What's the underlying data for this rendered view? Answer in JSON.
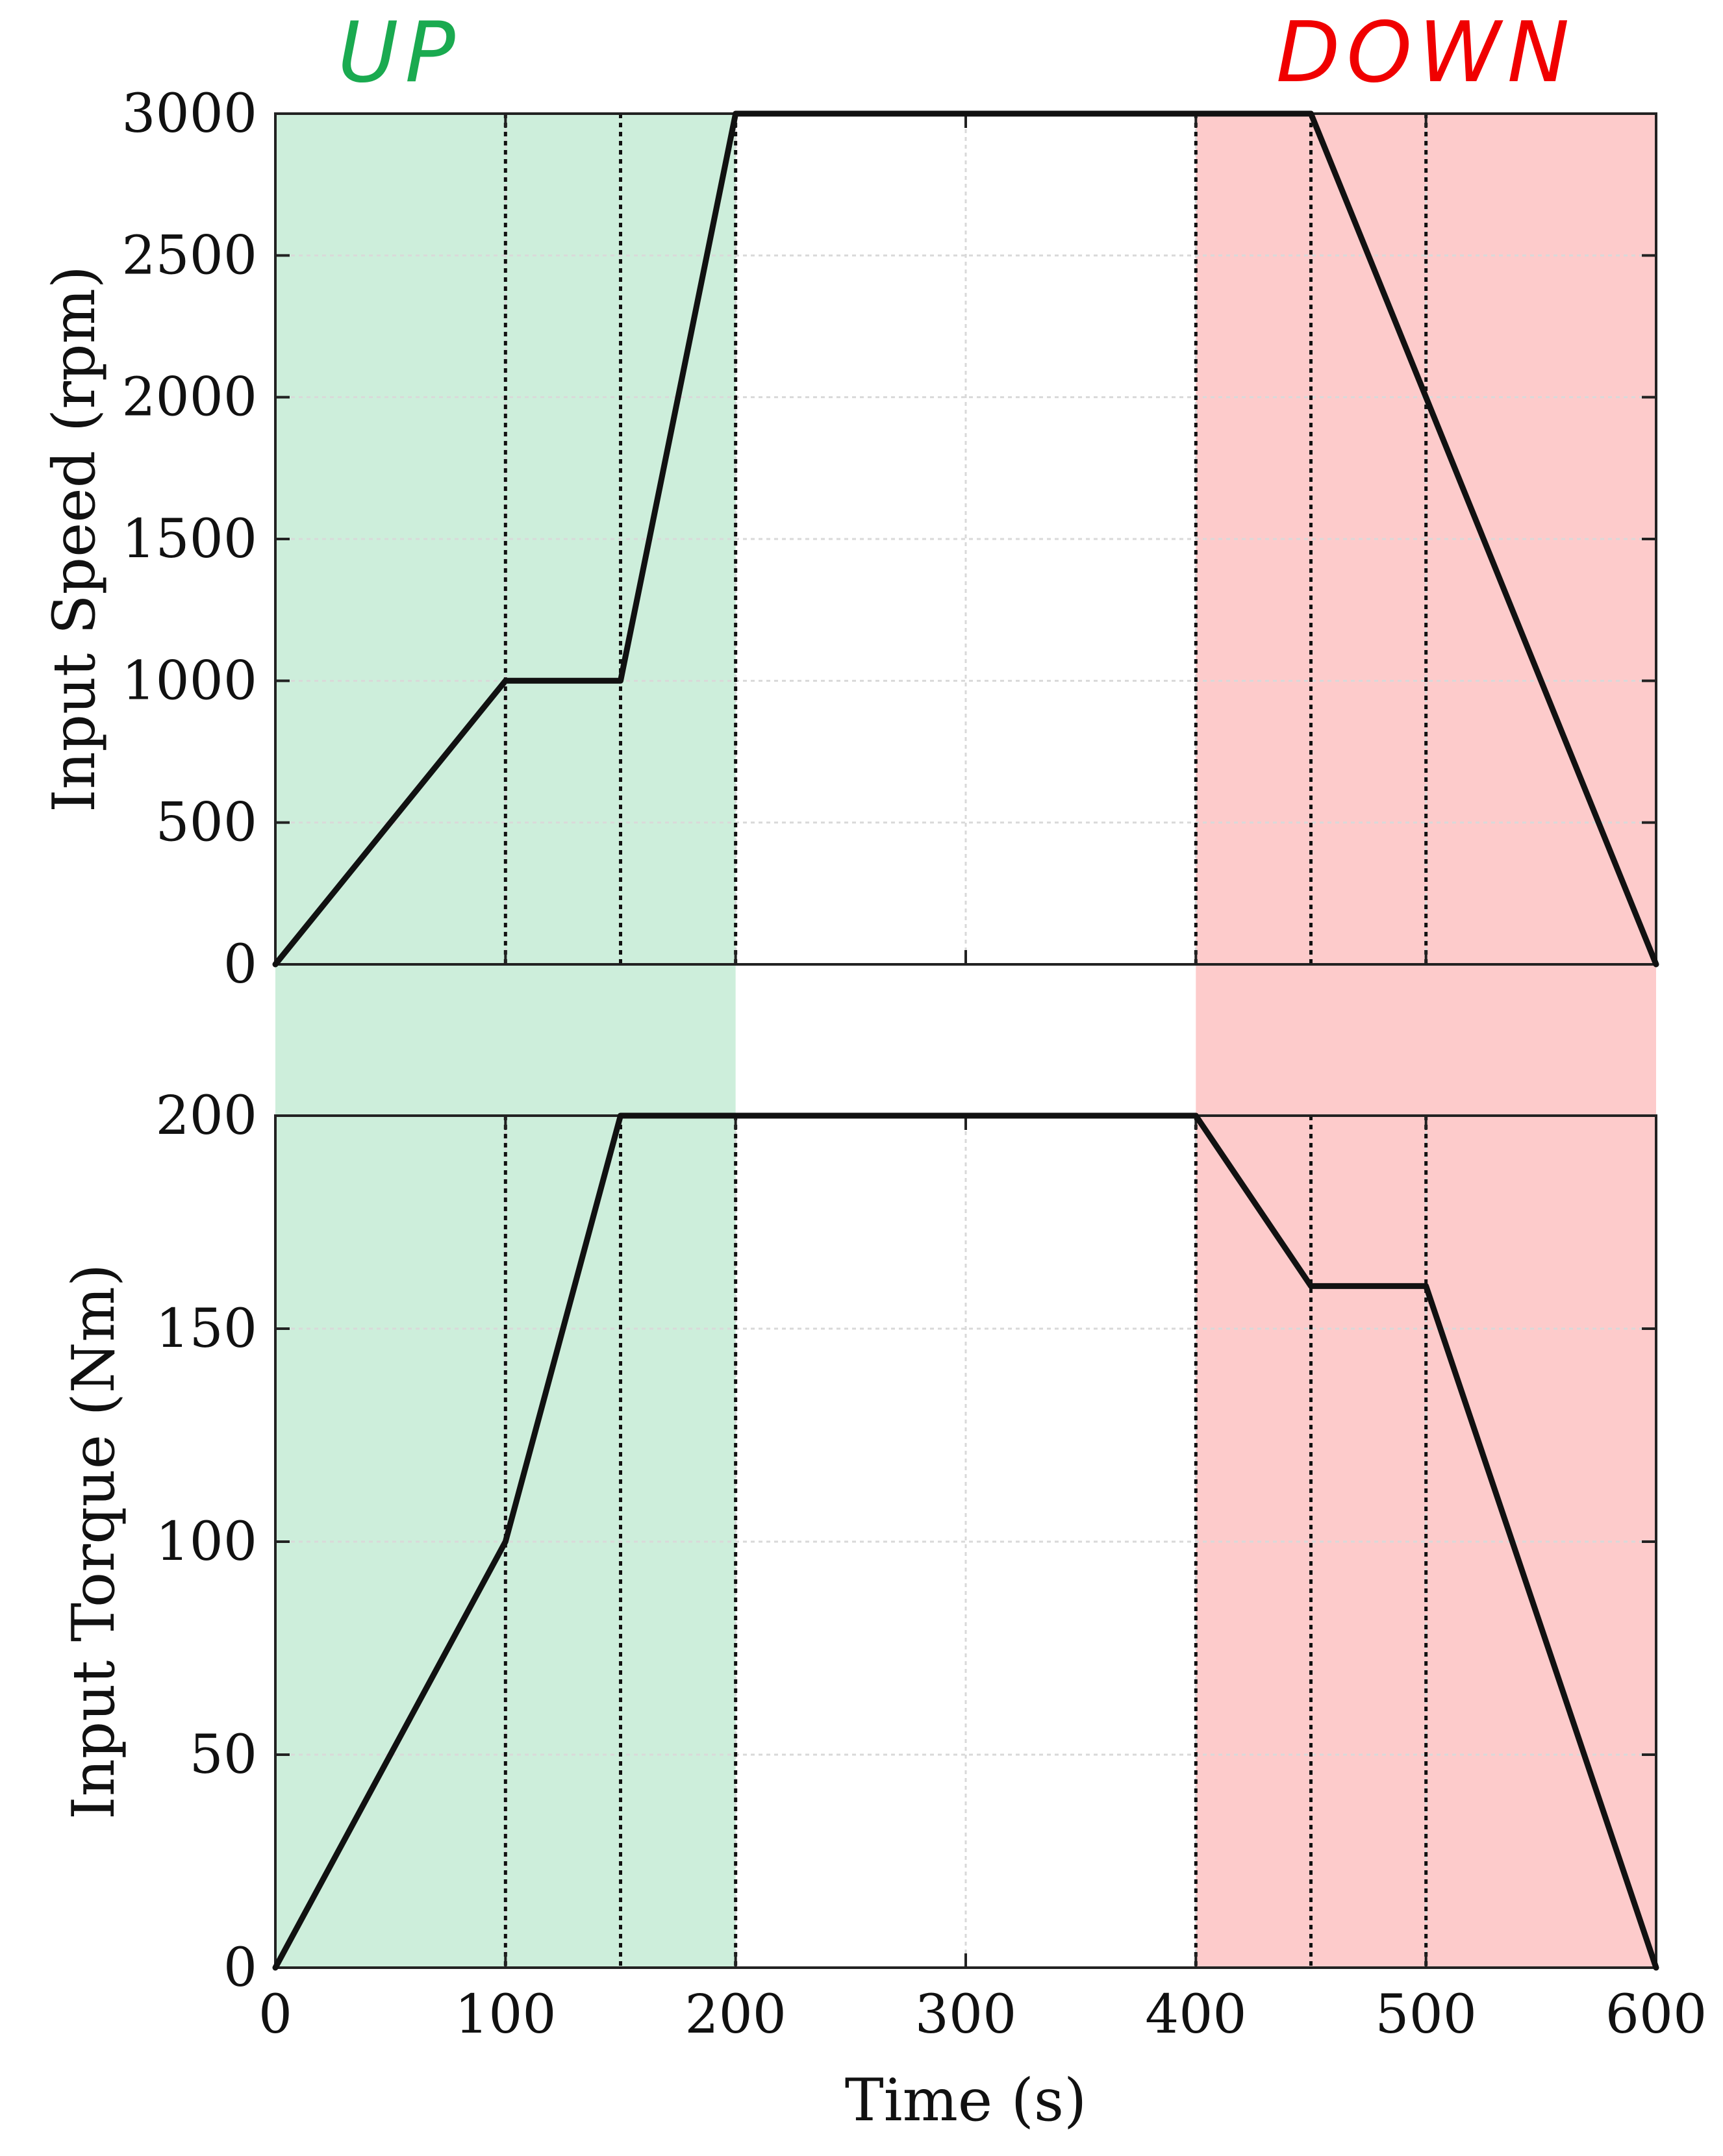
{
  "chart_data": [
    {
      "type": "line",
      "ylabel": "Input Speed (rpm)",
      "xlabel": "",
      "xlim": [
        0,
        600
      ],
      "ylim": [
        0,
        3000
      ],
      "yticks": [
        0,
        500,
        1000,
        1500,
        2000,
        2500,
        3000
      ],
      "ytick_labels": [
        "0",
        "500",
        "1000",
        "1500",
        "2000",
        "2500",
        "3000"
      ],
      "grid": true,
      "series": [
        {
          "x": [
            0,
            100,
            150,
            200,
            450,
            600
          ],
          "y": [
            0,
            1000,
            1000,
            3000,
            3000,
            0
          ]
        }
      ]
    },
    {
      "type": "line",
      "ylabel": "Input Torque (Nm)",
      "xlabel": "Time (s)",
      "xlim": [
        0,
        600
      ],
      "ylim": [
        0,
        200
      ],
      "yticks": [
        0,
        50,
        100,
        150,
        200
      ],
      "ytick_labels": [
        "0",
        "50",
        "100",
        "150",
        "200"
      ],
      "xticks": [
        0,
        100,
        200,
        300,
        400,
        500,
        600
      ],
      "xtick_labels": [
        "0",
        "100",
        "200",
        "300",
        "400",
        "500",
        "600"
      ],
      "grid": true,
      "series": [
        {
          "x": [
            0,
            100,
            150,
            400,
            450,
            500,
            600
          ],
          "y": [
            0,
            100,
            200,
            200,
            160,
            160,
            0
          ]
        }
      ]
    }
  ],
  "phases": [
    {
      "label": "UP",
      "x_start": 0,
      "x_end": 200,
      "color": "#cdeedb",
      "label_color": "#1aaa50"
    },
    {
      "label": "DOWN",
      "x_start": 400,
      "x_end": 600,
      "color": "#fdcbcb",
      "label_color": "#f00000"
    }
  ],
  "phase_boundaries": [
    100,
    150,
    200,
    400,
    450,
    500
  ],
  "colors": {
    "line": "#111111",
    "grid": "#d9d9d9",
    "axes": "#222222",
    "boundary": "#111111"
  }
}
